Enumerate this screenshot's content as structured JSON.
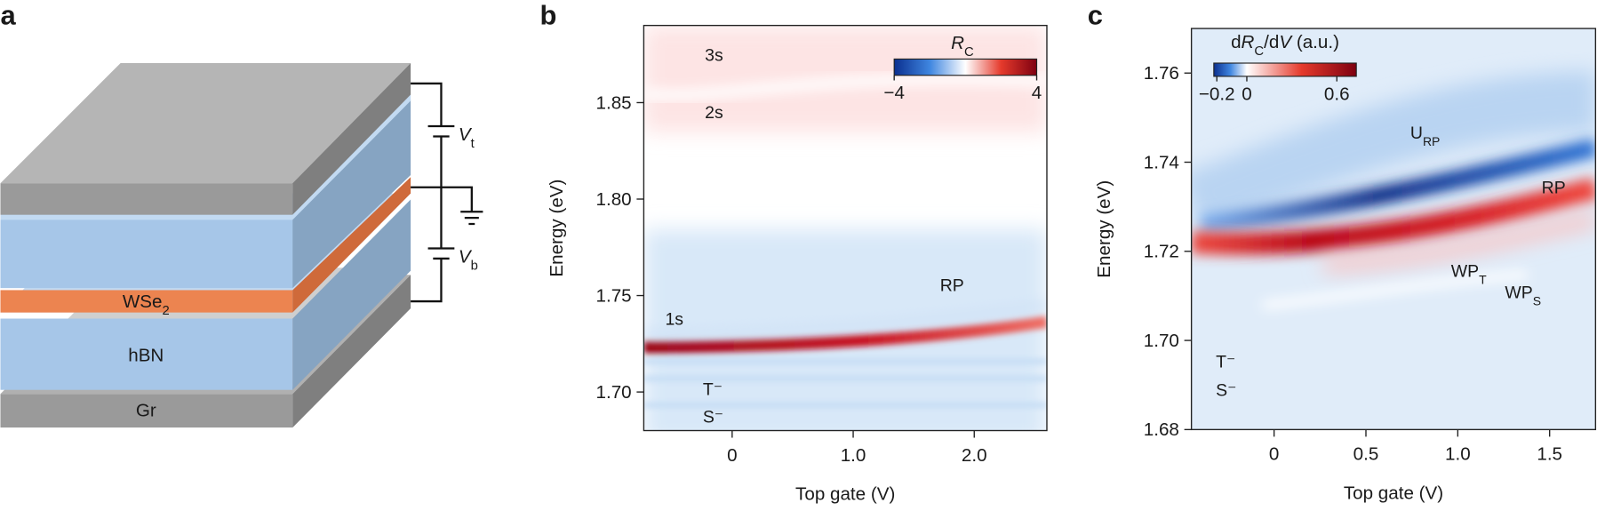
{
  "panel_labels": [
    "a",
    "b",
    "c"
  ],
  "diagram": {
    "top_gate": [
      {
        "text": "V",
        "style": "italic"
      },
      {
        "text": "t",
        "style": "sub"
      }
    ],
    "bottom_gate": [
      {
        "text": "V",
        "style": "italic"
      },
      {
        "text": "b",
        "style": "sub"
      }
    ],
    "layers": [
      [
        {
          "text": "WSe"
        },
        {
          "text": "2",
          "style": "sub"
        }
      ],
      [
        {
          "text": "hBN"
        }
      ],
      [
        {
          "text": "Gr"
        }
      ]
    ]
  },
  "chart_data": [
    {
      "type": "heatmap",
      "xlabel": "Top gate (V)",
      "ylabel": "Energy (eV)",
      "xlim": [
        -0.73,
        2.6
      ],
      "ylim": [
        1.68,
        1.89
      ],
      "xticks": [
        0,
        {
          "value": 1,
          "label": "1.0"
        },
        {
          "value": 2,
          "label": "2.0"
        }
      ],
      "yticks": [
        {
          "value": 1.7,
          "label": "1.70"
        },
        1.75,
        {
          "value": 1.8,
          "label": "1.80"
        },
        1.85
      ],
      "colorbar": {
        "label": [
          {
            "text": "R",
            "style": "italic"
          },
          {
            "text": "C",
            "style": "sub"
          }
        ],
        "lim": [
          -4,
          4
        ],
        "ticks": [
          {
            "value": -4,
            "label": "−4"
          },
          4
        ],
        "colors": [
          "#0b2f8f",
          "#3f86e0",
          "#ffffff",
          "#e53a2c",
          "#7e0010"
        ]
      },
      "annotations": [
        [
          {
            "text": "3s"
          }
        ],
        [
          {
            "text": "2s"
          }
        ],
        [
          {
            "text": "RP"
          }
        ],
        [
          {
            "text": "1s"
          }
        ],
        [
          {
            "text": "T⁻"
          }
        ],
        [
          {
            "text": "S⁻"
          }
        ]
      ]
    },
    {
      "type": "heatmap",
      "xlabel": "Top gate (V)",
      "ylabel": "Energy (eV)",
      "xlim": [
        -0.45,
        1.75
      ],
      "ylim": [
        1.68,
        1.77
      ],
      "xticks": [
        0,
        0.5,
        {
          "value": 1,
          "label": "1.0"
        },
        1.5
      ],
      "yticks": [
        1.68,
        {
          "value": 1.7,
          "label": "1.70"
        },
        1.72,
        1.74,
        1.76
      ],
      "colorbar": {
        "label": [
          {
            "text": "d"
          },
          {
            "text": "R",
            "style": "italic"
          },
          {
            "text": "C",
            "style": "sub"
          },
          {
            "text": "/d"
          },
          {
            "text": "V",
            "style": "italic"
          },
          {
            "text": " (a.u.)"
          }
        ],
        "lim": [
          -0.22,
          0.73
        ],
        "ticks": [
          {
            "value": -0.2,
            "label": "−0.2"
          },
          0,
          0.6
        ],
        "colors": [
          "#0b2f8f",
          "#3f86e0",
          "#ffffff",
          "#e53a2c",
          "#7e0010"
        ]
      },
      "annotations": [
        [
          {
            "text": "U"
          },
          {
            "text": "RP",
            "style": "sub"
          }
        ],
        [
          {
            "text": "RP"
          }
        ],
        [
          {
            "text": "WP"
          },
          {
            "text": "T",
            "style": "sub"
          }
        ],
        [
          {
            "text": "WP"
          },
          {
            "text": "S",
            "style": "sub"
          }
        ],
        [
          {
            "text": "T⁻"
          }
        ],
        [
          {
            "text": "S⁻"
          }
        ]
      ]
    }
  ]
}
